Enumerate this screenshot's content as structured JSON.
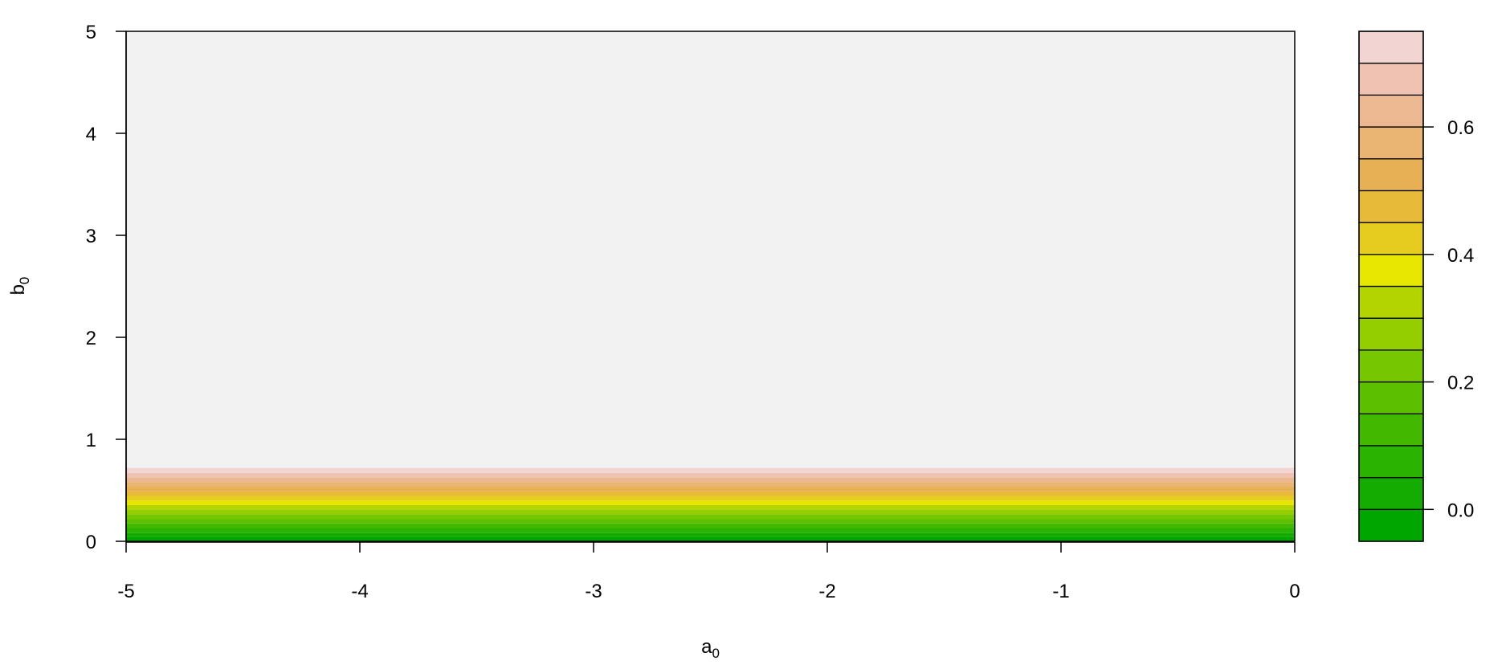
{
  "chart_data": {
    "type": "heatmap",
    "subtype": "filled-contour",
    "title": "",
    "xlabel": {
      "base": "a",
      "sub": "0"
    },
    "ylabel": {
      "base": "b",
      "sub": "0"
    },
    "xlim": [
      -5,
      0
    ],
    "ylim": [
      0,
      5
    ],
    "x_ticks": [
      "-5",
      "-4",
      "-3",
      "-2",
      "-1",
      "0"
    ],
    "y_ticks": [
      "0",
      "1",
      "2",
      "3",
      "4",
      "5"
    ],
    "grid": false,
    "legend": "right",
    "z_range": [
      -0.05,
      0.75
    ],
    "levels": [
      -0.05,
      0.0,
      0.05,
      0.1,
      0.15,
      0.2,
      0.25,
      0.3,
      0.35,
      0.4,
      0.45,
      0.5,
      0.55,
      0.6,
      0.65,
      0.7,
      0.75
    ],
    "colors": [
      "#00a600",
      "#14ac00",
      "#2ab300",
      "#42b900",
      "#5cc000",
      "#77c700",
      "#94cd00",
      "#b4d400",
      "#e6e600",
      "#e6cc1e",
      "#e7ba3a",
      "#e8b055",
      "#eab473",
      "#ecb892",
      "#efc2b2",
      "#f2d4d2",
      "#f2f2f2"
    ],
    "colorbar_ticks": [
      "0.0",
      "0.2",
      "0.4",
      "0.6"
    ],
    "colorbar_tick_values": [
      0.0,
      0.2,
      0.4,
      0.6
    ],
    "band_model": "z depends only on b0; z rises with b0, levels crossed between b0 = 0 and about b0 = 0.72, z >= 0.7 above",
    "band_b0_limits": [
      0.0,
      0.04,
      0.085,
      0.13,
      0.175,
      0.22,
      0.265,
      0.31,
      0.355,
      0.4,
      0.445,
      0.49,
      0.535,
      0.58,
      0.625,
      0.67,
      0.72,
      5.0
    ]
  }
}
